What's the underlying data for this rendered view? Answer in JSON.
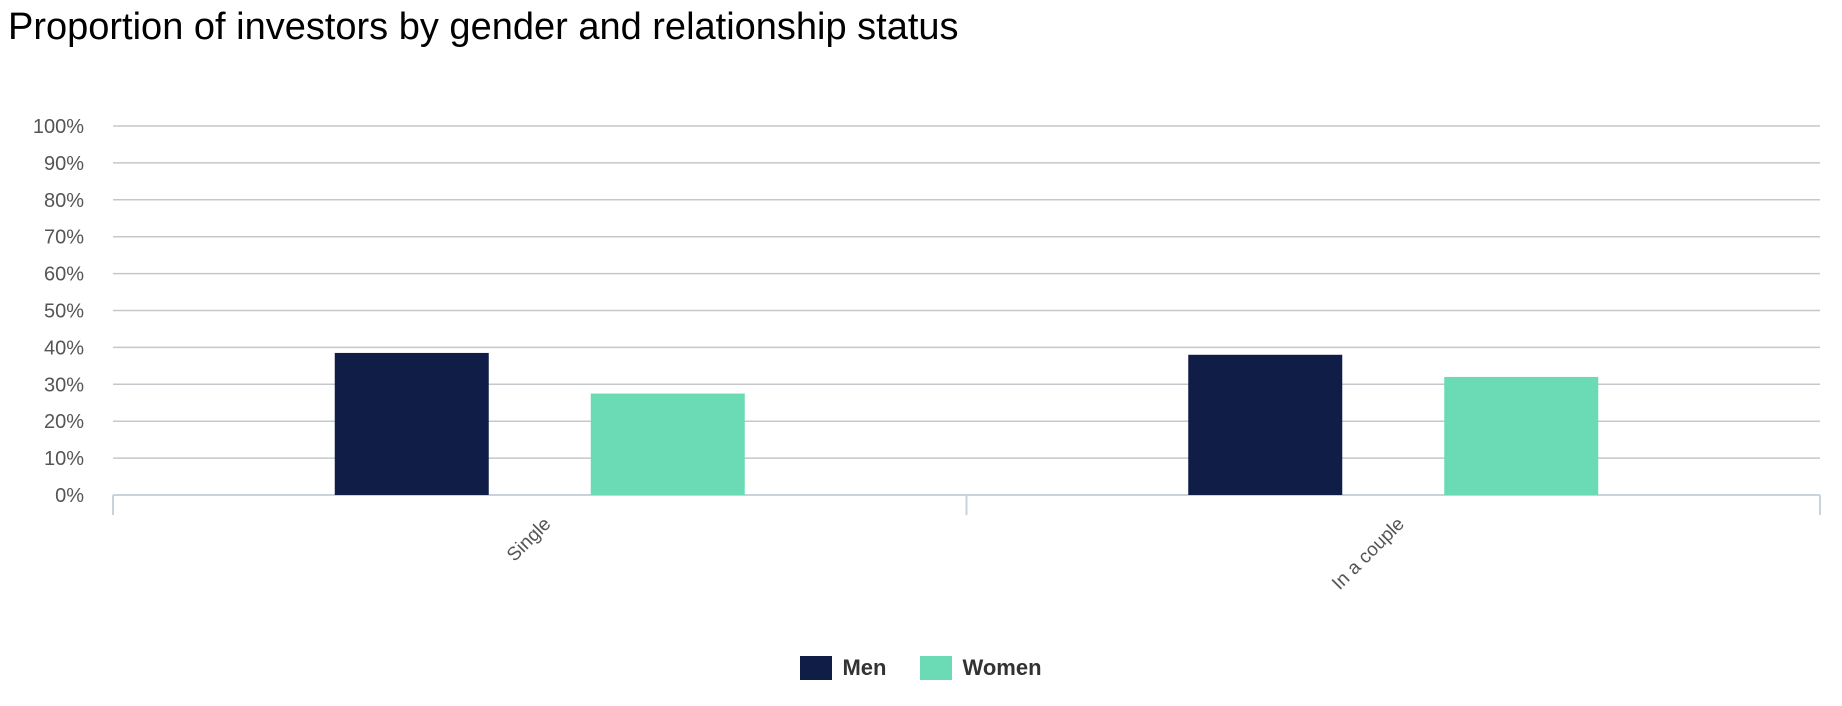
{
  "title": "Proportion of investors by gender and relationship status",
  "colors": {
    "men": "#0f1d47",
    "women": "#6adbb4",
    "grid": "#c4c8cc",
    "axis": "#c7d3df"
  },
  "chart_data": {
    "type": "bar",
    "title": "Proportion of investors by gender and relationship status",
    "categories": [
      "Single",
      "In a couple"
    ],
    "series": [
      {
        "name": "Men",
        "values": [
          38.5,
          38
        ]
      },
      {
        "name": "Women",
        "values": [
          27.5,
          32
        ]
      }
    ],
    "ylim": [
      0,
      100
    ],
    "yticks": [
      "0%",
      "10%",
      "20%",
      "30%",
      "40%",
      "50%",
      "60%",
      "70%",
      "80%",
      "90%",
      "100%"
    ],
    "grid": true,
    "legend_position": "bottom"
  },
  "legend": [
    {
      "label": "Men"
    },
    {
      "label": "Women"
    }
  ]
}
